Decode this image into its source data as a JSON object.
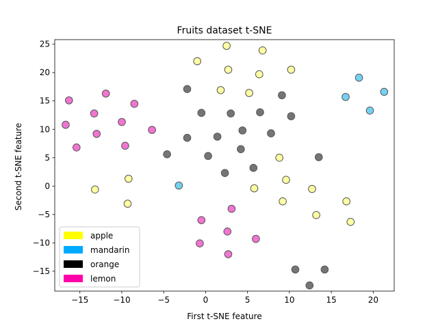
{
  "chart_data": {
    "type": "scatter",
    "title": "Fruits dataset t-SNE",
    "xlabel": "First t-SNE feature",
    "ylabel": "Second t-SNE feature",
    "xlim": [
      -18,
      22.5
    ],
    "ylim": [
      -18.5,
      25.8
    ],
    "xticks": [
      -15,
      -10,
      -5,
      0,
      5,
      10,
      15,
      20
    ],
    "yticks": [
      -15,
      -10,
      -5,
      0,
      5,
      10,
      15,
      20,
      25
    ],
    "grid": false,
    "legend_position": "lower-left",
    "legend": [
      {
        "name": "apple",
        "color": "#ffff00"
      },
      {
        "name": "mandarin",
        "color": "#00aaff"
      },
      {
        "name": "orange",
        "color": "#000000"
      },
      {
        "name": "lemon",
        "color": "#ff00aa"
      }
    ],
    "marker_colors": {
      "apple": "#ffff99",
      "mandarin": "#66ccee",
      "orange": "#666666",
      "lemon": "#ee66cc"
    },
    "series": [
      {
        "name": "apple",
        "points": [
          [
            2.5,
            24.7
          ],
          [
            6.8,
            23.9
          ],
          [
            -1.0,
            22.0
          ],
          [
            2.7,
            20.5
          ],
          [
            6.4,
            19.7
          ],
          [
            10.2,
            20.5
          ],
          [
            1.8,
            16.9
          ],
          [
            5.2,
            16.4
          ],
          [
            -9.2,
            1.3
          ],
          [
            -13.2,
            -0.6
          ],
          [
            -9.3,
            -3.1
          ],
          [
            8.8,
            5.0
          ],
          [
            9.6,
            1.1
          ],
          [
            5.8,
            -0.4
          ],
          [
            12.7,
            -0.5
          ],
          [
            9.2,
            -2.7
          ],
          [
            13.2,
            -5.1
          ],
          [
            16.8,
            -2.7
          ],
          [
            17.3,
            -6.3
          ]
        ]
      },
      {
        "name": "mandarin",
        "points": [
          [
            18.3,
            19.1
          ],
          [
            21.3,
            16.6
          ],
          [
            16.7,
            15.7
          ],
          [
            19.6,
            13.3
          ],
          [
            -3.2,
            0.1
          ]
        ]
      },
      {
        "name": "orange",
        "points": [
          [
            -2.2,
            17.1
          ],
          [
            9.1,
            16.0
          ],
          [
            -0.5,
            12.9
          ],
          [
            3.0,
            12.8
          ],
          [
            6.5,
            13.0
          ],
          [
            10.2,
            12.3
          ],
          [
            4.4,
            9.8
          ],
          [
            7.8,
            9.3
          ],
          [
            -2.2,
            8.5
          ],
          [
            1.4,
            8.7
          ],
          [
            4.2,
            6.5
          ],
          [
            -4.6,
            5.6
          ],
          [
            0.3,
            5.3
          ],
          [
            13.5,
            5.1
          ],
          [
            5.7,
            3.2
          ],
          [
            2.3,
            2.3
          ],
          [
            10.7,
            -14.7
          ],
          [
            14.2,
            -14.7
          ],
          [
            12.4,
            -17.5
          ]
        ]
      },
      {
        "name": "lemon",
        "points": [
          [
            -16.3,
            15.1
          ],
          [
            -11.9,
            16.3
          ],
          [
            -8.5,
            14.5
          ],
          [
            -13.3,
            12.8
          ],
          [
            -16.7,
            10.8
          ],
          [
            -13.0,
            9.2
          ],
          [
            -10.0,
            11.3
          ],
          [
            -6.4,
            9.9
          ],
          [
            -15.4,
            6.8
          ],
          [
            -9.6,
            7.1
          ],
          [
            3.1,
            -4.0
          ],
          [
            -0.5,
            -6.0
          ],
          [
            2.6,
            -8.0
          ],
          [
            -0.7,
            -10.1
          ],
          [
            6.0,
            -9.3
          ],
          [
            2.7,
            -12.0
          ]
        ]
      }
    ]
  }
}
